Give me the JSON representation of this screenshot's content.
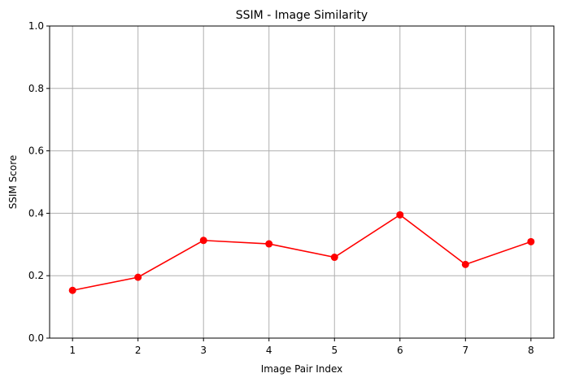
{
  "chart_data": {
    "type": "line",
    "title": "SSIM - Image Similarity",
    "xlabel": "Image Pair Index",
    "ylabel": "SSIM Score",
    "x": [
      1,
      2,
      3,
      4,
      5,
      6,
      7,
      8
    ],
    "series": [
      {
        "values": [
          0.153,
          0.195,
          0.313,
          0.302,
          0.259,
          0.395,
          0.236,
          0.309
        ],
        "color": "#ff0000",
        "marker": "circle"
      }
    ],
    "xticks": [
      "1",
      "2",
      "3",
      "4",
      "5",
      "6",
      "7",
      "8"
    ],
    "yticks": [
      "0.0",
      "0.2",
      "0.4",
      "0.6",
      "0.8",
      "1.0"
    ],
    "ylim": [
      0,
      1
    ],
    "xlim": [
      0.65,
      8.35
    ],
    "grid": true
  }
}
